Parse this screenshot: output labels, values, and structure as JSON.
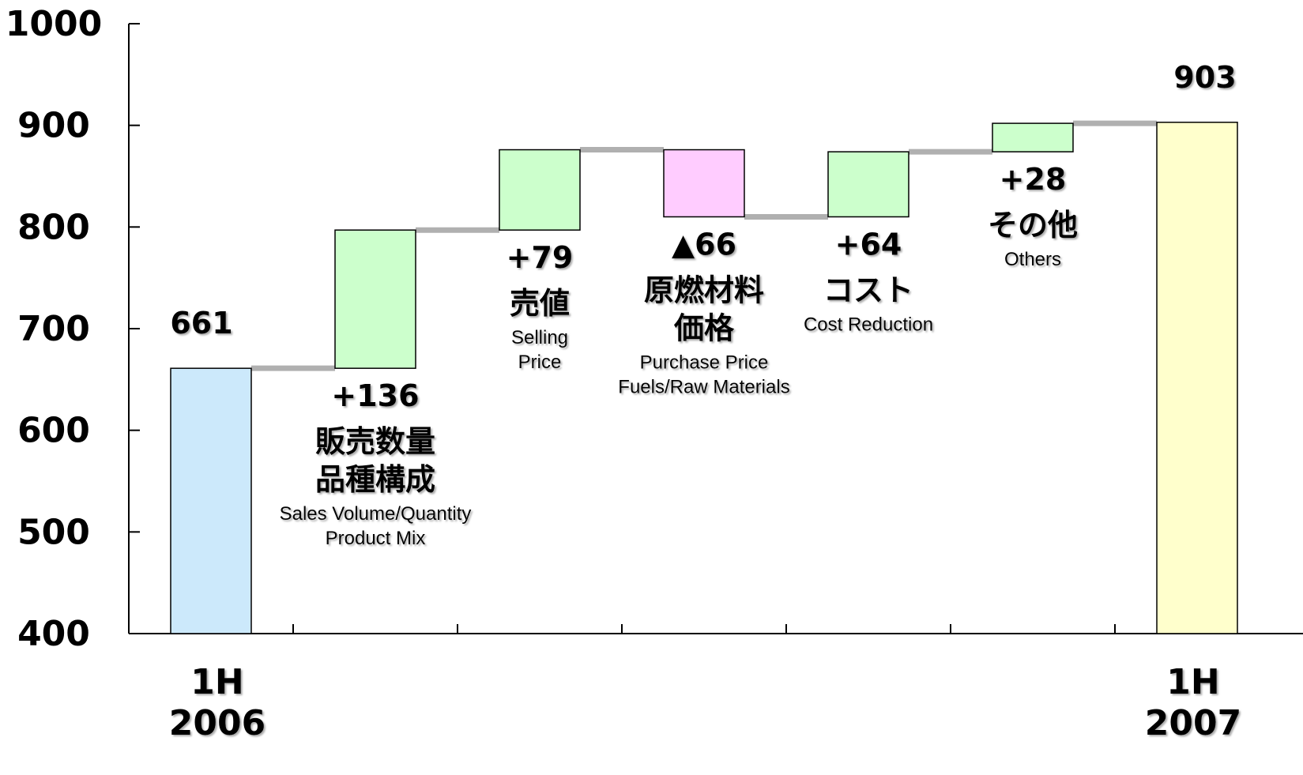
{
  "chart_data": {
    "type": "waterfall",
    "ylim": [
      400,
      1000
    ],
    "yticks": [
      "1000",
      "900",
      "800",
      "700",
      "600",
      "500",
      "400"
    ],
    "grid": false,
    "steps": [
      {
        "kind": "total",
        "value": 661,
        "label_value": "661",
        "x_label": [
          "1H",
          "2006"
        ],
        "color": "#cce9fb"
      },
      {
        "kind": "delta",
        "value": 136,
        "label_value": "+136",
        "label_jp": [
          "販売数量",
          "品種構成"
        ],
        "label_en": [
          "Sales Volume/Quantity",
          "Product Mix"
        ],
        "color": "#ccffcc"
      },
      {
        "kind": "delta",
        "value": 79,
        "label_value": "+79",
        "label_jp": [
          "売値"
        ],
        "label_en": [
          "Selling",
          "Price"
        ],
        "color": "#ccffcc"
      },
      {
        "kind": "delta",
        "value": -66,
        "label_value": "▲66",
        "label_jp": [
          "原燃材料",
          "価格"
        ],
        "label_en": [
          "Purchase Price",
          "Fuels/Raw Materials"
        ],
        "color": "#ffccff"
      },
      {
        "kind": "delta",
        "value": 64,
        "label_value": "+64",
        "label_jp": [
          "コスト"
        ],
        "label_en": [
          "Cost Reduction"
        ],
        "color": "#ccffcc"
      },
      {
        "kind": "delta",
        "value": 28,
        "label_value": "+28",
        "label_jp": [
          "その他"
        ],
        "label_en": [
          "Others"
        ],
        "color": "#ccffcc"
      },
      {
        "kind": "total",
        "value": 903,
        "label_value": "903",
        "x_label": [
          "1H",
          "2007"
        ],
        "color": "#ffffcc"
      }
    ],
    "connector_color": "#b0b0b0"
  }
}
